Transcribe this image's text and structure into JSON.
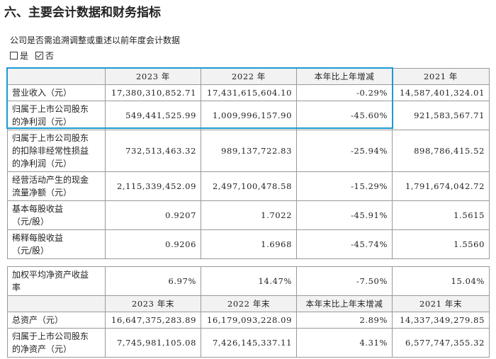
{
  "header": {
    "title": "六、主要会计数据和财务指标",
    "question": "公司是否需追溯调整或重述以前年度会计数据",
    "options": [
      "是",
      "否"
    ]
  },
  "table1": {
    "header": [
      "2023 年",
      "2022 年",
      "本年比上年增减",
      "2021 年"
    ],
    "rows": [
      {
        "label": [
          "营业收入（元）"
        ],
        "values": [
          "17,380,310,852.71",
          "17,431,615,604.10",
          "-0.29%",
          "14,587,401,324.01"
        ]
      },
      {
        "label": [
          "归属于上市公司股东",
          "的净利润（元）"
        ],
        "values": [
          "549,441,525.99",
          "1,009,996,157.90",
          "-45.60%",
          "921,583,567.71"
        ]
      },
      {
        "label": [
          "归属于上市公司股东",
          "的扣除非经常性损益",
          "的净利润（元）"
        ],
        "values": [
          "732,513,463.32",
          "989,137,722.83",
          "-25.94%",
          "898,786,415.52"
        ]
      },
      {
        "label": [
          "经营活动产生的现金",
          "流量净额（元）"
        ],
        "values": [
          "2,115,339,452.09",
          "2,497,100,478.58",
          "-15.29%",
          "1,791,674,042.72"
        ]
      },
      {
        "label": [
          "基本每股收益",
          "（元/股）"
        ],
        "values": [
          "0.9207",
          "1.7022",
          "-45.91%",
          "1.5615"
        ]
      },
      {
        "label": [
          "稀释每股收益",
          "（元/股）"
        ],
        "values": [
          "0.9206",
          "1.6968",
          "-45.74%",
          "1.5560"
        ]
      }
    ]
  },
  "table2": {
    "rows_before": [
      {
        "label": [
          "加权平均净资产收益",
          "率"
        ],
        "values": [
          "6.97%",
          "14.47%",
          "-7.50%",
          "15.04%"
        ]
      }
    ],
    "header": [
      "2023 年末",
      "2022 年末",
      "本年末比上年末增减",
      "2021 年末"
    ],
    "rows": [
      {
        "label": [
          "总资产（元）"
        ],
        "values": [
          "16,647,375,283.89",
          "16,179,093,228.09",
          "2.89%",
          "14,337,349,279.85"
        ]
      },
      {
        "label": [
          "归属于上市公司股东",
          "的净资产（元）"
        ],
        "values": [
          "7,745,981,105.08",
          "7,426,145,337.11",
          "4.31%",
          "6,577,747,355.32"
        ]
      }
    ]
  }
}
